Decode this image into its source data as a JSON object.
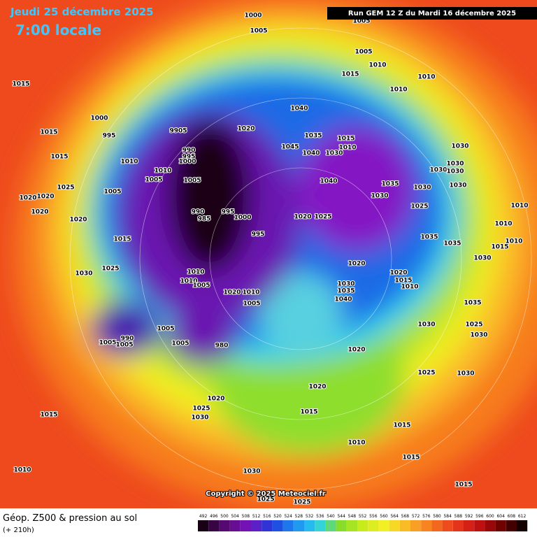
{
  "header": {
    "date": "Jeudi 25 décembre 2025",
    "time": "7:00 locale",
    "run": "Run GEM 12 Z du Mardi 16 décembre 2025"
  },
  "map": {
    "copyright": "Copyright © 2025 Meteociel.fr",
    "pressure_labels": [
      1000,
      1005,
      1005,
      1005,
      1010,
      1015,
      1010,
      1010,
      1015,
      1040,
      1000,
      995,
      9905,
      1020,
      1035,
      1015,
      1010,
      1045,
      1040,
      1030,
      990,
      995,
      1000,
      1010,
      1010,
      1005,
      1005,
      1040,
      1035,
      1030,
      1030,
      1030,
      1030,
      1030,
      1030,
      1030,
      1015,
      1015,
      1025,
      1020,
      1020,
      1020,
      1005,
      1020,
      1025,
      1010,
      990,
      985,
      995,
      1000,
      995,
      1020,
      1025,
      1015,
      1035,
      1035,
      1010,
      1010,
      1015,
      1025,
      1030,
      1010,
      1010,
      1005,
      1020,
      1020,
      1015,
      1010,
      1030,
      1030,
      1035,
      1040,
      1020,
      1010,
      1005,
      1035,
      1025,
      1030,
      1030,
      1005,
      1005,
      990,
      1005,
      1005,
      980,
      1020,
      1025,
      1030,
      1020,
      1020,
      1025,
      1030,
      1015,
      1015,
      1015,
      1010,
      1015,
      1010,
      1030,
      1015,
      1025,
      1025
    ]
  },
  "footer": {
    "title": "Géop. Z500 & pression au sol",
    "subtitle": "(+ 210h)",
    "legend_ticks": [
      492,
      496,
      500,
      504,
      508,
      512,
      516,
      520,
      524,
      528,
      532,
      536,
      540,
      544,
      548,
      552,
      556,
      560,
      564,
      568,
      572,
      576,
      580,
      584,
      588,
      592,
      596,
      600,
      604,
      608,
      612
    ]
  }
}
